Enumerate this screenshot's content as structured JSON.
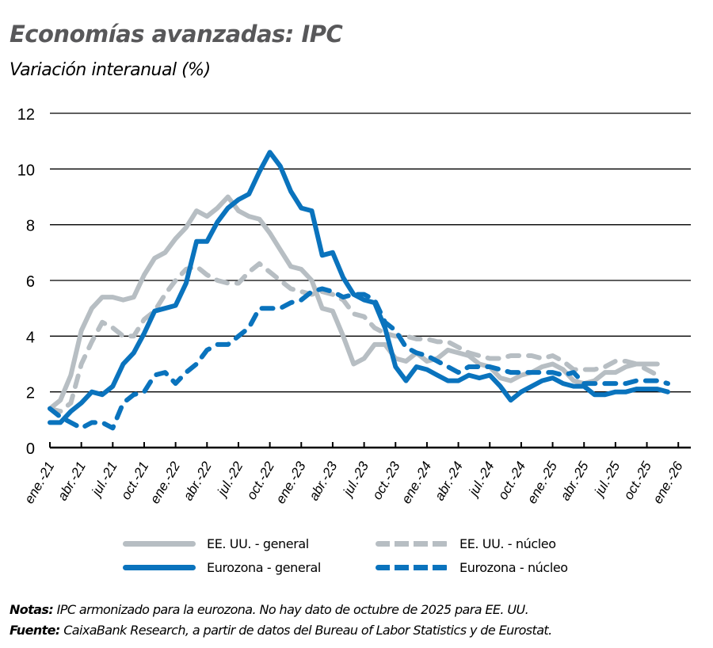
{
  "title": "Economías avanzadas: IPC",
  "subtitle": "Variación interanual (%)",
  "notes": {
    "notas_label": "Notas:",
    "notas_text": "IPC armonizado para la eurozona. No hay dato de octubre de 2025 para EE. UU.",
    "fuente_label": "Fuente:",
    "fuente_text": "CaixaBank Research, a partir de datos del Bureau of Labor Statistics y de Eurostat."
  },
  "legend": [
    {
      "label": "EE. UU. - general",
      "color": "#b7bec3",
      "dash": false
    },
    {
      "label": "EE. UU. - núcleo",
      "color": "#b7bec3",
      "dash": true
    },
    {
      "label": "Eurozona - general",
      "color": "#0a73bd",
      "dash": false
    },
    {
      "label": "Eurozona - núcleo",
      "color": "#0a73bd",
      "dash": true
    }
  ],
  "chart_data": {
    "type": "line",
    "title": "Economías avanzadas: IPC",
    "subtitle": "Variación interanual (%)",
    "xlabel": "",
    "ylabel": "",
    "ylim": [
      0,
      12
    ],
    "yticks": [
      0,
      2,
      4,
      6,
      8,
      10,
      12
    ],
    "grid": "horizontal",
    "legend_position": "bottom",
    "x_tick_labels": [
      "ene.-21",
      "abr.-21",
      "jul.-21",
      "oct.-21",
      "ene.-22",
      "abr.-22",
      "jul.-22",
      "oct.-22",
      "ene.-23",
      "abr.-23",
      "jul.-23",
      "oct.-23",
      "ene.-24",
      "abr.-24",
      "jul.-24",
      "oct.-24",
      "ene.-25",
      "abr.-25",
      "jul.-25",
      "oct.-25",
      "ene.-26"
    ],
    "x_start": "2021-01",
    "x_frequency": "monthly",
    "series": [
      {
        "name": "EE. UU. - general",
        "color": "#b7bec3",
        "style": "solid",
        "values": [
          1.4,
          1.7,
          2.6,
          4.2,
          5.0,
          5.4,
          5.4,
          5.3,
          5.4,
          6.2,
          6.8,
          7.0,
          7.5,
          7.9,
          8.5,
          8.3,
          8.6,
          9.0,
          8.5,
          8.3,
          8.2,
          7.7,
          7.1,
          6.5,
          6.4,
          6.0,
          5.0,
          4.9,
          4.0,
          3.0,
          3.2,
          3.7,
          3.7,
          3.2,
          3.1,
          3.4,
          3.1,
          3.2,
          3.5,
          3.4,
          3.3,
          3.0,
          2.9,
          2.5,
          2.4,
          2.6,
          2.7,
          2.9,
          3.0,
          2.8,
          2.4,
          2.3,
          2.4,
          2.7,
          2.7,
          2.9,
          3.0,
          null,
          3.0
        ]
      },
      {
        "name": "EE. UU. - núcleo",
        "color": "#b7bec3",
        "style": "dashed",
        "values": [
          1.4,
          1.3,
          1.6,
          3.0,
          3.8,
          4.5,
          4.3,
          4.0,
          4.0,
          4.6,
          4.9,
          5.5,
          6.0,
          6.4,
          6.5,
          6.2,
          6.0,
          5.9,
          5.9,
          6.3,
          6.6,
          6.3,
          6.0,
          5.7,
          5.6,
          5.5,
          5.6,
          5.5,
          5.3,
          4.8,
          4.7,
          4.3,
          4.1,
          4.0,
          4.0,
          3.9,
          3.9,
          3.8,
          3.8,
          3.6,
          3.4,
          3.3,
          3.2,
          3.2,
          3.3,
          3.3,
          3.3,
          3.2,
          3.3,
          3.1,
          2.8,
          2.8,
          2.8,
          2.9,
          3.1,
          3.1,
          3.0,
          null,
          2.6
        ]
      },
      {
        "name": "Eurozona - general",
        "color": "#0a73bd",
        "style": "solid",
        "values": [
          0.9,
          0.9,
          1.3,
          1.6,
          2.0,
          1.9,
          2.2,
          3.0,
          3.4,
          4.1,
          4.9,
          5.0,
          5.1,
          5.9,
          7.4,
          7.4,
          8.1,
          8.6,
          8.9,
          9.1,
          9.9,
          10.6,
          10.1,
          9.2,
          8.6,
          8.5,
          6.9,
          7.0,
          6.1,
          5.5,
          5.3,
          5.2,
          4.3,
          2.9,
          2.4,
          2.9,
          2.8,
          2.6,
          2.4,
          2.4,
          2.6,
          2.5,
          2.6,
          2.2,
          1.7,
          2.0,
          2.2,
          2.4,
          2.5,
          2.3,
          2.2,
          2.2,
          1.9,
          1.9,
          2.0,
          2.0,
          2.1,
          2.1,
          2.1,
          2.0
        ]
      },
      {
        "name": "Eurozona - núcleo",
        "color": "#0a73bd",
        "style": "dashed",
        "values": [
          1.4,
          1.1,
          0.9,
          0.7,
          0.9,
          0.9,
          0.7,
          1.6,
          1.9,
          2.0,
          2.6,
          2.7,
          2.3,
          2.7,
          3.0,
          3.5,
          3.7,
          3.7,
          4.0,
          4.3,
          5.0,
          5.0,
          5.0,
          5.2,
          5.3,
          5.6,
          5.7,
          5.6,
          5.4,
          5.5,
          5.5,
          5.3,
          4.5,
          4.2,
          3.6,
          3.4,
          3.3,
          3.1,
          2.9,
          2.7,
          2.9,
          2.9,
          2.9,
          2.8,
          2.7,
          2.7,
          2.7,
          2.7,
          2.7,
          2.6,
          2.7,
          2.3,
          2.3,
          2.3,
          2.3,
          2.3,
          2.4,
          2.4,
          2.4,
          2.3
        ]
      }
    ]
  }
}
